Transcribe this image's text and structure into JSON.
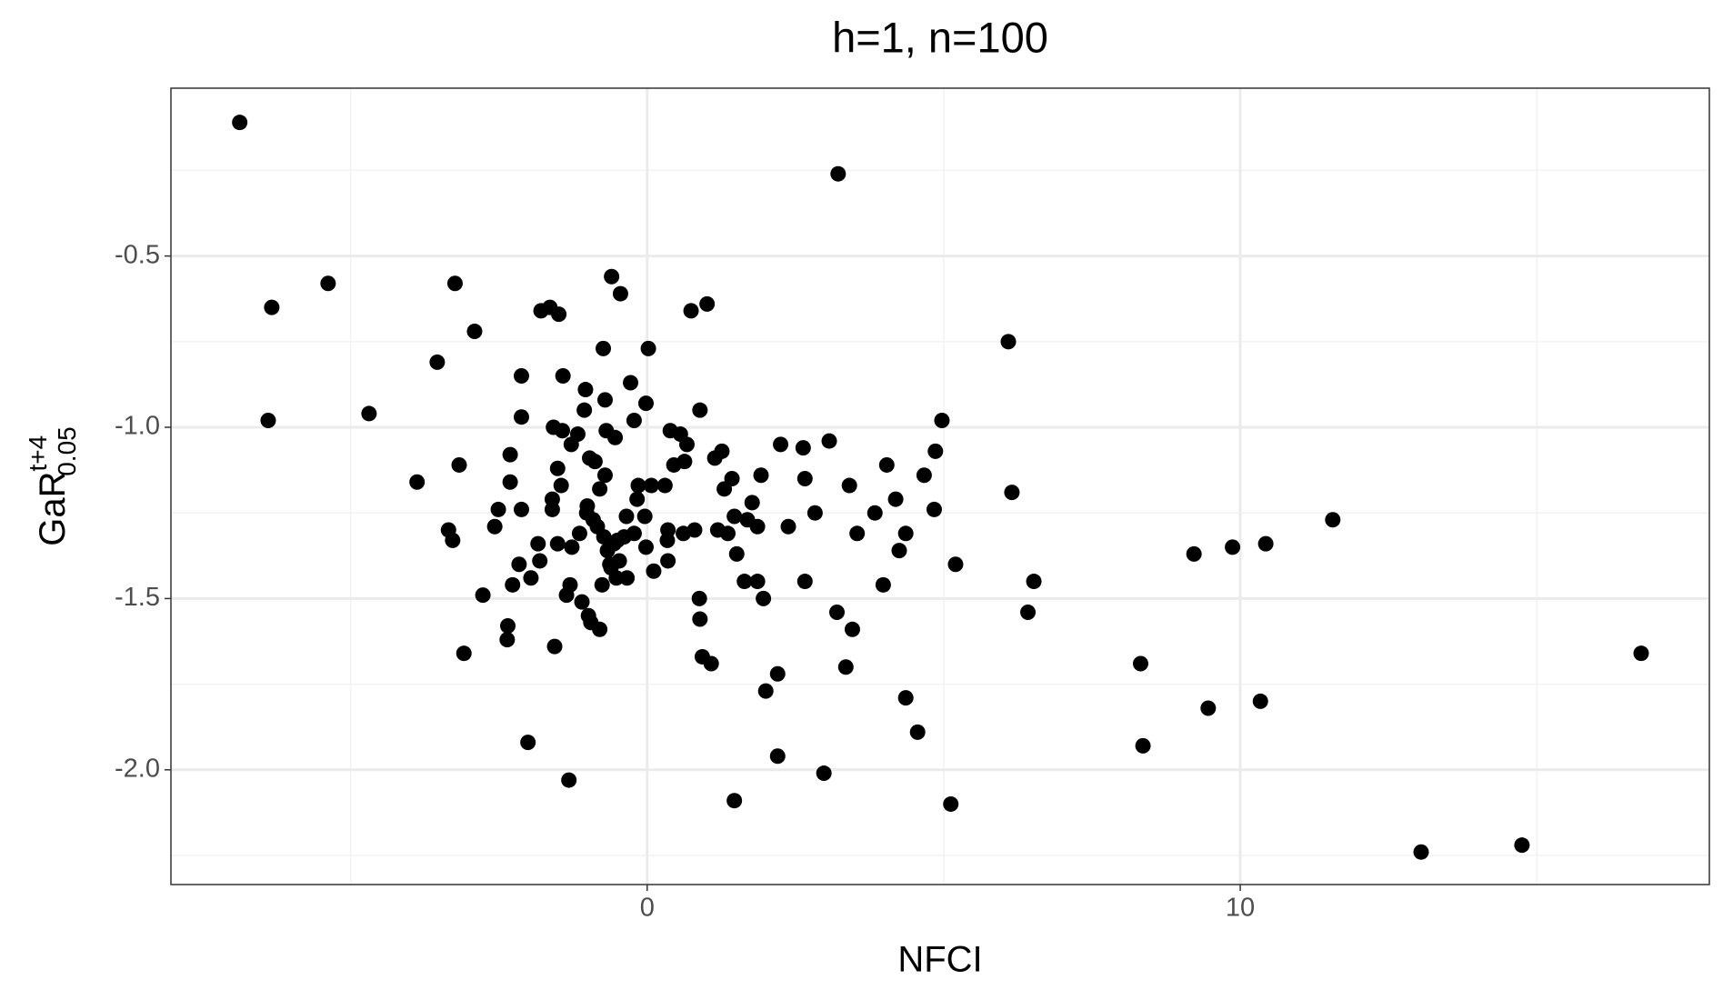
{
  "chart_data": {
    "type": "scatter",
    "title": "h=1, n=100",
    "x_label": "NFCI",
    "y_label": {
      "main": "GaR",
      "sup": "t+4",
      "sub": "0.05"
    },
    "color": "#000000",
    "xlim": [
      -8.03,
      17.91
    ],
    "ylim": [
      -2.335,
      -0.01
    ],
    "xticks": [
      0,
      10
    ],
    "yticks": [
      {
        "value": -0.5,
        "label": "-0.5"
      },
      {
        "value": -1.0,
        "label": "-1.0"
      },
      {
        "value": -1.5,
        "label": "-1.5"
      },
      {
        "value": -2.0,
        "label": "-2.0"
      }
    ],
    "minor_xticks": [
      -5,
      5,
      15
    ],
    "minor_yticks": [
      -0.25,
      -0.75,
      -1.25,
      -1.75,
      -2.25
    ],
    "grid": true,
    "x": [
      -6.87,
      3.22,
      -6.33,
      -5.38,
      -6.39,
      -4.69,
      -3.24,
      -2.91,
      -3.54,
      -3.88,
      -3.17,
      -3.35,
      -3.28,
      -3.09,
      -2.77,
      -2.57,
      -2.51,
      -2.31,
      -2.31,
      -2.27,
      -2.35,
      -2.36,
      -2.12,
      -2.12,
      -2.12,
      -2.16,
      -2.01,
      -1.96,
      -1.84,
      -1.81,
      -1.79,
      -1.64,
      -1.49,
      -1.58,
      -1.43,
      -1.56,
      -1.51,
      -1.6,
      -1.6,
      -1.51,
      -1.45,
      -1.42,
      -1.32,
      -1.36,
      -1.3,
      -1.28,
      -1.27,
      -1.17,
      -1.14,
      -1.1,
      -1.06,
      -1.04,
      -1.02,
      -1.01,
      -0.99,
      -0.97,
      -0.95,
      -0.91,
      -0.88,
      -0.84,
      -0.8,
      -0.8,
      -0.76,
      -0.73,
      -0.74,
      -0.71,
      -0.71,
      -0.69,
      -0.67,
      -0.63,
      -0.61,
      -0.6,
      -0.56,
      -0.54,
      -0.52,
      -0.5,
      -0.45,
      -0.47,
      -0.39,
      -0.35,
      -0.34,
      -0.28,
      -0.22,
      -0.22,
      -0.17,
      -0.15,
      -0.04,
      -0.02,
      -0.02,
      0.02,
      0.07,
      0.11,
      0.3,
      0.34,
      0.35,
      0.35,
      0.39,
      0.45,
      0.56,
      0.61,
      0.63,
      0.67,
      0.74,
      0.8,
      0.88,
      0.89,
      0.89,
      0.93,
      1.01,
      1.08,
      1.14,
      1.19,
      1.26,
      1.3,
      1.36,
      1.43,
      1.47,
      1.47,
      1.51,
      1.64,
      1.69,
      1.77,
      1.86,
      1.86,
      1.92,
      1.96,
      2.0,
      2.2,
      2.2,
      2.25,
      2.38,
      2.63,
      2.66,
      2.66,
      2.83,
      2.98,
      3.07,
      3.2,
      3.35,
      3.41,
      3.46,
      3.54,
      3.84,
      3.98,
      4.04,
      4.19,
      4.25,
      4.36,
      4.36,
      4.56,
      4.67,
      4.84,
      4.86,
      4.97,
      5.12,
      5.2,
      6.09,
      6.15,
      6.42,
      6.52,
      8.32,
      8.36,
      9.22,
      9.46,
      9.87,
      10.34,
      10.43,
      11.56,
      13.05,
      14.75,
      16.76
    ],
    "y": [
      -0.11,
      -0.26,
      -0.65,
      -0.58,
      -0.98,
      -0.96,
      -0.58,
      -0.72,
      -0.81,
      -1.16,
      -1.11,
      -1.3,
      -1.33,
      -1.66,
      -1.49,
      -1.29,
      -1.24,
      -1.08,
      -1.16,
      -1.46,
      -1.58,
      -1.62,
      -0.85,
      -0.97,
      -1.24,
      -1.4,
      -1.92,
      -1.44,
      -1.34,
      -1.39,
      -0.66,
      -0.65,
      -0.67,
      -1.0,
      -1.01,
      -1.64,
      -1.34,
      -1.21,
      -1.24,
      -1.12,
      -1.17,
      -0.85,
      -2.03,
      -1.49,
      -1.46,
      -1.05,
      -1.35,
      -1.02,
      -1.31,
      -1.51,
      -0.95,
      -0.89,
      -1.25,
      -1.23,
      -1.55,
      -1.09,
      -1.57,
      -1.27,
      -1.1,
      -1.29,
      -1.18,
      -1.59,
      -1.46,
      -1.32,
      -0.77,
      -0.92,
      -1.14,
      -1.01,
      -1.36,
      -1.4,
      -1.41,
      -0.56,
      -1.34,
      -1.03,
      -1.44,
      -1.33,
      -0.61,
      -1.39,
      -1.32,
      -1.26,
      -1.44,
      -0.87,
      -1.31,
      -0.98,
      -1.21,
      -1.17,
      -1.26,
      -1.35,
      -0.93,
      -0.77,
      -1.17,
      -1.42,
      -1.17,
      -1.33,
      -1.3,
      -1.39,
      -1.01,
      -1.11,
      -1.02,
      -1.31,
      -1.1,
      -1.05,
      -0.66,
      -1.3,
      -1.5,
      -0.95,
      -1.56,
      -1.67,
      -0.64,
      -1.69,
      -1.09,
      -1.3,
      -1.07,
      -1.18,
      -1.31,
      -1.15,
      -1.26,
      -2.09,
      -1.37,
      -1.45,
      -1.27,
      -1.22,
      -1.29,
      -1.45,
      -1.14,
      -1.5,
      -1.77,
      -1.72,
      -1.96,
      -1.05,
      -1.29,
      -1.06,
      -1.45,
      -1.15,
      -1.25,
      -2.01,
      -1.04,
      -1.54,
      -1.7,
      -1.17,
      -1.59,
      -1.31,
      -1.25,
      -1.46,
      -1.11,
      -1.21,
      -1.36,
      -1.31,
      -1.79,
      -1.89,
      -1.14,
      -1.24,
      -1.07,
      -0.98,
      -2.1,
      -1.4,
      -0.75,
      -1.19,
      -1.54,
      -1.45,
      -1.69,
      -1.93,
      -1.37,
      -1.82,
      -1.35,
      -1.8,
      -1.34,
      -1.27,
      -2.24,
      -2.22,
      -1.66
    ]
  }
}
